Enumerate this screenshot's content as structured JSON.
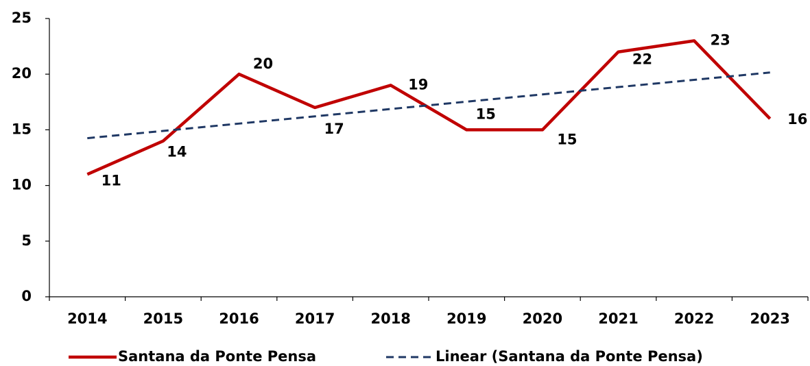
{
  "chart_data": {
    "type": "line",
    "categories": [
      "2014",
      "2015",
      "2016",
      "2017",
      "2018",
      "2019",
      "2020",
      "2021",
      "2022",
      "2023"
    ],
    "series": [
      {
        "name": "Santana da Ponte Pensa",
        "color": "#c00000",
        "style": "solid",
        "values": [
          11,
          14,
          20,
          17,
          19,
          15,
          15,
          22,
          23,
          16
        ],
        "data_labels": true
      },
      {
        "name": "Linear (Santana da Ponte Pensa)",
        "color": "#1f3864",
        "style": "dashed",
        "values": [
          14.25,
          14.9,
          15.56,
          16.21,
          16.87,
          17.53,
          18.18,
          18.84,
          19.49,
          20.15
        ],
        "data_labels": false
      }
    ],
    "ylim": [
      0,
      25
    ],
    "yticks": [
      0,
      5,
      10,
      15,
      20,
      25
    ],
    "grid": false,
    "legend": "bottom"
  }
}
